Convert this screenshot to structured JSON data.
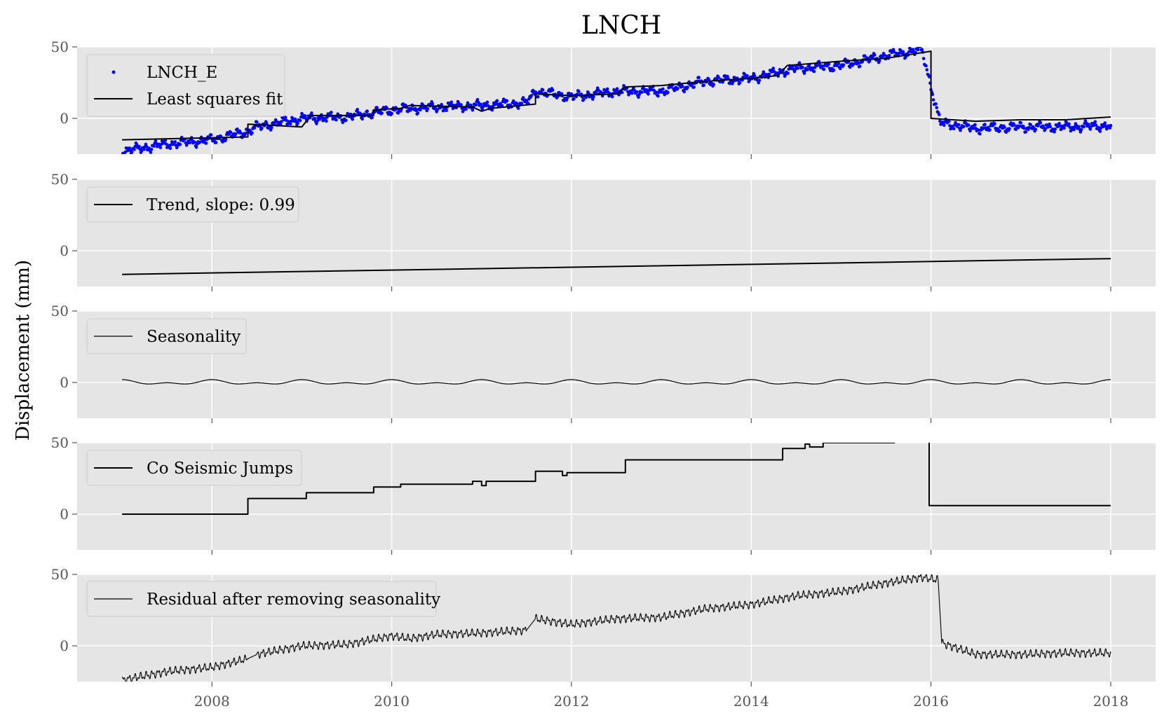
{
  "chart_data": {
    "type": "line",
    "title": "LNCH",
    "ylabel": "Displacement (mm)",
    "xlim": [
      2006.5,
      2018.5
    ],
    "ylim": [
      -25,
      50
    ],
    "x_ticks": [
      2008,
      2010,
      2012,
      2014,
      2016,
      2018
    ],
    "y_ticks": [
      0,
      50
    ],
    "grid": true,
    "legend_placement": "upper left",
    "panels": [
      {
        "id": "observed",
        "series": [
          {
            "name": "LNCH_E",
            "kind": "scatter",
            "color": "#0000ff",
            "x": [
              2007.0,
              2007.5,
              2008.0,
              2008.4,
              2008.5,
              2009.0,
              2009.5,
              2010.0,
              2010.5,
              2011.0,
              2011.5,
              2011.6,
              2012.0,
              2012.5,
              2013.0,
              2013.5,
              2014.0,
              2014.5,
              2015.0,
              2015.5,
              2015.9,
              2016.1,
              2016.5,
              2017.0,
              2017.5,
              2018.0
            ],
            "y": [
              -23,
              -18,
              -15,
              -9,
              -6,
              0,
              1,
              6,
              8,
              9,
              11,
              19,
              15,
              19,
              19,
              26,
              28,
              35,
              37,
              44,
              48,
              -3,
              -7,
              -6,
              -6,
              -5
            ]
          },
          {
            "name": "Least squares fit",
            "kind": "line",
            "color": "#000000",
            "x": [
              2007.0,
              2008.4,
              2008.4,
              2009.0,
              2009.1,
              2009.8,
              2009.8,
              2010.1,
              2010.2,
              2010.9,
              2011.0,
              2011.1,
              2011.6,
              2011.6,
              2012.0,
              2012.5,
              2012.6,
              2013.0,
              2013.5,
              2014.0,
              2014.3,
              2014.4,
              2015.0,
              2015.5,
              2016.0,
              2016.0,
              2016.5,
              2017.0,
              2017.5,
              2018.0
            ],
            "y": [
              -15,
              -13,
              -4,
              -6,
              2,
              2,
              6,
              7,
              9,
              8,
              5,
              7,
              10,
              17,
              16,
              17,
              22,
              23,
              26,
              28,
              30,
              37,
              40,
              42,
              47,
              0,
              -2,
              -1,
              -1,
              1
            ]
          }
        ]
      },
      {
        "id": "trend",
        "series": [
          {
            "name": "Trend, slope: 0.99",
            "kind": "line",
            "color": "#000000",
            "x": [
              2007.0,
              2018.0
            ],
            "y": [
              -16.5,
              -5.5
            ]
          }
        ]
      },
      {
        "id": "seasonality",
        "series": [
          {
            "name": "Seasonality",
            "kind": "sine",
            "color": "#000000",
            "x_start": 2007.0,
            "x_end": 2018.0,
            "amplitude": 2,
            "period": 1,
            "offset": 0
          }
        ]
      },
      {
        "id": "jumps",
        "series": [
          {
            "name": "Co Seismic Jumps",
            "kind": "step",
            "color": "#000000",
            "x": [
              2007.0,
              2008.4,
              2008.4,
              2009.05,
              2009.05,
              2009.8,
              2009.8,
              2010.1,
              2010.1,
              2010.9,
              2010.9,
              2011.0,
              2011.0,
              2011.05,
              2011.05,
              2011.6,
              2011.6,
              2011.9,
              2011.9,
              2011.95,
              2011.95,
              2012.6,
              2012.6,
              2014.35,
              2014.35,
              2014.6,
              2014.6,
              2014.65,
              2014.65,
              2014.8,
              2014.8,
              2015.6
            ],
            "y": [
              0,
              0,
              11,
              11,
              15,
              15,
              19,
              19,
              21,
              21,
              23,
              23,
              20,
              20,
              23,
              23,
              30,
              30,
              27,
              27,
              29,
              29,
              38,
              38,
              46,
              46,
              49,
              49,
              47,
              47,
              50,
              50
            ]
          },
          {
            "name": "",
            "kind": "step",
            "color": "#000000",
            "x": [
              2015.98,
              2015.98,
              2018.0
            ],
            "y": [
              50,
              6,
              6
            ]
          }
        ]
      },
      {
        "id": "residual",
        "series": [
          {
            "name": "Residual after removing seasonality",
            "kind": "line",
            "color": "#000000",
            "x": [
              2007.0,
              2007.5,
              2008.0,
              2008.4,
              2008.5,
              2009.0,
              2009.5,
              2010.0,
              2010.2,
              2010.5,
              2011.0,
              2011.5,
              2011.6,
              2012.0,
              2012.5,
              2013.0,
              2013.5,
              2014.0,
              2014.5,
              2015.0,
              2015.5,
              2015.9,
              2016.08,
              2016.12,
              2016.5,
              2017.0,
              2017.5,
              2018.0
            ],
            "y": [
              -24,
              -18,
              -15,
              -9,
              -6,
              0,
              1,
              7,
              5,
              8,
              9,
              11,
              19,
              15,
              19,
              20,
              26,
              29,
              35,
              38,
              44,
              48,
              46,
              2,
              -6,
              -6,
              -5,
              -5
            ]
          }
        ]
      }
    ]
  }
}
